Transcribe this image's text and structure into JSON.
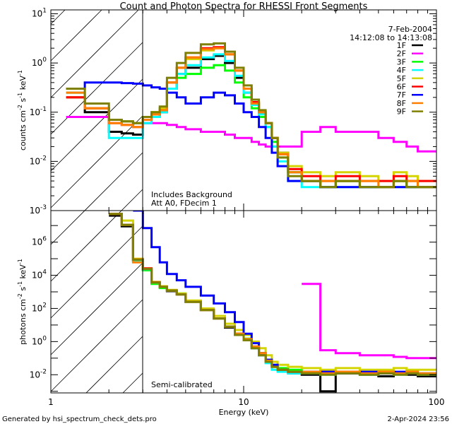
{
  "chart_data": [
    {
      "type": "line",
      "panel": "top",
      "title": "Count and Photon Spectra for RHESSI Front Segments",
      "date": "7-Feb-2004",
      "time_range": "14:12:08 to 14:13:08",
      "annotations": [
        "Includes Background",
        "Att A0, FDecim 1"
      ],
      "ylabel": {
        "base": "counts cm",
        "e1": "-2",
        "mid": " s",
        "e2": "-1",
        "mid2": " keV",
        "e3": "-1"
      },
      "xscale": "log",
      "yscale": "log",
      "xlim": [
        1,
        100
      ],
      "ylim": [
        0.001,
        12
      ],
      "yticks": [
        {
          "b": "10",
          "e": "1",
          "v": 10
        },
        {
          "b": "10",
          "e": "0",
          "v": 1
        },
        {
          "b": "10",
          "e": "-1",
          "v": 0.1
        },
        {
          "b": "10",
          "e": "-2",
          "v": 0.01
        },
        {
          "b": "10",
          "e": "-3",
          "v": 0.001
        }
      ],
      "legend_position": "top-right",
      "energy_edges": [
        1.2,
        1.5,
        2,
        2.33,
        2.67,
        3,
        3.33,
        3.67,
        4,
        4.5,
        5,
        6,
        7,
        8,
        9,
        10,
        11,
        12,
        13,
        14,
        15,
        17,
        20,
        25,
        30,
        40,
        50,
        60,
        70,
        80,
        100
      ],
      "series": [
        {
          "name": "1F",
          "color": "#000000",
          "values": [
            0.2,
            0.1,
            0.04,
            0.037,
            0.035,
            0.06,
            0.08,
            0.1,
            0.3,
            0.6,
            0.8,
            1.2,
            1.4,
            1.0,
            0.5,
            0.25,
            0.15,
            0.1,
            0.06,
            0.03,
            0.015,
            0.006,
            0.004,
            0.003,
            0.004,
            0.003,
            0.003,
            0.004,
            0.003,
            0.003
          ]
        },
        {
          "name": "2F",
          "color": "#ff00ff",
          "values": [
            0.08,
            0.08,
            0.07,
            0.065,
            0.06,
            0.06,
            0.06,
            0.06,
            0.055,
            0.05,
            0.045,
            0.04,
            0.04,
            0.035,
            0.03,
            0.03,
            0.025,
            0.022,
            0.02,
            0.02,
            0.02,
            0.02,
            0.04,
            0.05,
            0.04,
            0.04,
            0.03,
            0.025,
            0.02,
            0.016
          ]
        },
        {
          "name": "3F",
          "color": "#00ff00",
          "values": [
            0.25,
            0.12,
            0.07,
            0.065,
            0.06,
            0.08,
            0.1,
            0.12,
            0.3,
            0.5,
            0.6,
            0.8,
            0.9,
            0.7,
            0.4,
            0.2,
            0.12,
            0.08,
            0.05,
            0.025,
            0.012,
            0.006,
            0.004,
            0.003,
            0.004,
            0.003,
            0.003,
            0.004,
            0.003,
            0.003
          ]
        },
        {
          "name": "4F",
          "color": "#00ffff",
          "values": [
            0.25,
            0.12,
            0.03,
            0.03,
            0.03,
            0.06,
            0.08,
            0.1,
            0.3,
            0.6,
            0.9,
            1.3,
            1.5,
            1.1,
            0.55,
            0.25,
            0.14,
            0.09,
            0.05,
            0.02,
            0.01,
            0.004,
            0.003,
            0.003,
            0.003,
            0.003,
            0.003,
            0.003,
            0.003,
            0.003
          ]
        },
        {
          "name": "5F",
          "color": "#d4d400",
          "values": [
            0.2,
            0.12,
            0.07,
            0.065,
            0.06,
            0.08,
            0.1,
            0.12,
            0.4,
            0.8,
            1.2,
            1.8,
            2.0,
            1.5,
            0.7,
            0.3,
            0.16,
            0.1,
            0.06,
            0.03,
            0.015,
            0.008,
            0.006,
            0.005,
            0.006,
            0.005,
            0.004,
            0.006,
            0.005,
            0.004
          ]
        },
        {
          "name": "6F",
          "color": "#ff0000",
          "values": [
            0.2,
            0.12,
            0.06,
            0.055,
            0.05,
            0.07,
            0.09,
            0.11,
            0.4,
            0.8,
            1.3,
            2.0,
            2.1,
            1.5,
            0.7,
            0.3,
            0.16,
            0.1,
            0.06,
            0.03,
            0.014,
            0.007,
            0.005,
            0.004,
            0.005,
            0.004,
            0.004,
            0.005,
            0.004,
            0.004
          ]
        },
        {
          "name": "7F",
          "color": "#0000ff",
          "values": [
            0.3,
            0.4,
            0.4,
            0.39,
            0.38,
            0.35,
            0.32,
            0.3,
            0.25,
            0.2,
            0.15,
            0.2,
            0.25,
            0.22,
            0.15,
            0.1,
            0.08,
            0.05,
            0.03,
            0.015,
            0.008,
            0.004,
            0.004,
            0.003,
            0.003,
            0.003,
            0.003,
            0.003,
            0.003,
            0.003
          ]
        },
        {
          "name": "8F",
          "color": "#ff8000",
          "values": [
            0.25,
            0.12,
            0.06,
            0.055,
            0.05,
            0.07,
            0.09,
            0.11,
            0.4,
            0.8,
            1.3,
            1.9,
            2.0,
            1.5,
            0.7,
            0.3,
            0.15,
            0.1,
            0.06,
            0.03,
            0.014,
            0.006,
            0.004,
            0.004,
            0.004,
            0.004,
            0.003,
            0.004,
            0.004,
            0.003
          ]
        },
        {
          "name": "9F",
          "color": "#808000",
          "values": [
            0.3,
            0.15,
            0.07,
            0.065,
            0.06,
            0.08,
            0.1,
            0.13,
            0.5,
            1.0,
            1.6,
            2.4,
            2.5,
            1.7,
            0.8,
            0.35,
            0.18,
            0.11,
            0.06,
            0.03,
            0.012,
            0.005,
            0.004,
            0.003,
            0.004,
            0.003,
            0.003,
            0.004,
            0.003,
            0.003
          ]
        }
      ]
    },
    {
      "type": "line",
      "panel": "bottom",
      "annotations": [
        "Semi-calibrated"
      ],
      "xlabel": "Energy (keV)",
      "ylabel": {
        "base": "photons cm",
        "e1": "-2",
        "mid": " s",
        "e2": "-1",
        "mid2": " keV",
        "e3": "-1"
      },
      "xscale": "log",
      "yscale": "log",
      "xlim": [
        1,
        100
      ],
      "ylim": [
        0.0008,
        80000000
      ],
      "xticks": [
        {
          "label": "1",
          "v": 1
        },
        {
          "label": "10",
          "v": 10
        },
        {
          "label": "100",
          "v": 100
        }
      ],
      "yticks": [
        {
          "b": "10",
          "e": "6",
          "v": 1000000
        },
        {
          "b": "10",
          "e": "4",
          "v": 10000
        },
        {
          "b": "10",
          "e": "2",
          "v": 100
        },
        {
          "b": "10",
          "e": "0",
          "v": 1
        },
        {
          "b": "10",
          "e": "-2",
          "v": 0.01
        }
      ],
      "energy_edges": [
        1.2,
        1.5,
        2,
        2.33,
        2.67,
        3,
        3.33,
        3.67,
        4,
        4.5,
        5,
        6,
        7,
        8,
        9,
        10,
        11,
        12,
        13,
        14,
        15,
        17,
        20,
        25,
        30,
        40,
        50,
        60,
        70,
        80,
        100
      ],
      "series": [
        {
          "name": "1F",
          "color": "#000000",
          "values": [
            null,
            null,
            40000000.0,
            9000000.0,
            80000.0,
            22000.0,
            3500.0,
            1900.0,
            1100.0,
            700.0,
            250.0,
            80,
            25,
            7,
            3,
            1.2,
            0.4,
            0.15,
            0.06,
            0.03,
            0.02,
            0.012,
            0.01,
            0.001,
            0.012,
            0.01,
            0.008,
            0.012,
            0.01,
            0.008
          ]
        },
        {
          "name": "2F",
          "color": "#ff00ff",
          "values": [
            null,
            null,
            null,
            null,
            null,
            null,
            null,
            null,
            null,
            null,
            null,
            null,
            null,
            null,
            null,
            null,
            null,
            null,
            null,
            null,
            null,
            null,
            3000,
            0.3,
            0.2,
            0.15,
            0.15,
            0.12,
            0.1,
            0.1
          ]
        },
        {
          "name": "3F",
          "color": "#00ff00",
          "values": [
            null,
            null,
            50000000.0,
            11000000.0,
            70000.0,
            20000.0,
            3000.0,
            1700.0,
            1200.0,
            800.0,
            250.0,
            80,
            25,
            8,
            3,
            1.5,
            0.5,
            0.2,
            0.08,
            0.04,
            0.025,
            0.02,
            0.015,
            0.015,
            0.015,
            0.012,
            0.015,
            0.012,
            0.015,
            0.012
          ]
        },
        {
          "name": "4F",
          "color": "#00ffff",
          "values": [
            null,
            null,
            50000000.0,
            11000000.0,
            80000.0,
            23000.0,
            3600.0,
            2000.0,
            1200.0,
            700.0,
            250.0,
            80,
            25,
            8,
            2.5,
            1.2,
            0.4,
            0.15,
            0.05,
            0.02,
            0.015,
            0.012,
            0.012,
            0.01,
            0.012,
            0.01,
            0.012,
            0.01,
            0.012,
            0.01
          ]
        },
        {
          "name": "5F",
          "color": "#d4d400",
          "values": [
            null,
            null,
            50000000.0,
            20000000.0,
            100000.0,
            26000.0,
            4000.0,
            2200.0,
            1300.0,
            800.0,
            300.0,
            100.0,
            35,
            12,
            5,
            2.5,
            1,
            0.4,
            0.15,
            0.06,
            0.04,
            0.03,
            0.025,
            0.02,
            0.025,
            0.02,
            0.02,
            0.025,
            0.02,
            0.02
          ]
        },
        {
          "name": "6F",
          "color": "#ff0000",
          "values": [
            null,
            null,
            50000000.0,
            11000000.0,
            90000.0,
            26000.0,
            3800.0,
            2000.0,
            1200.0,
            700.0,
            250.0,
            80,
            25,
            8,
            3,
            1.4,
            0.5,
            0.2,
            0.07,
            0.035,
            0.02,
            0.015,
            0.015,
            0.015,
            0.015,
            0.012,
            0.015,
            0.012,
            0.015,
            0.012
          ]
        },
        {
          "name": "7F",
          "color": "#0000ff",
          "values": [
            null,
            null,
            null,
            null,
            100000000.0,
            7000000.0,
            500000.0,
            60000.0,
            12000.0,
            5000.0,
            2000.0,
            600.0,
            200.0,
            60,
            15,
            3,
            0.8,
            0.2,
            0.08,
            0.04,
            0.02,
            0.015,
            0.015,
            0.015,
            0.012,
            0.015,
            0.012,
            0.015,
            0.012,
            0.012
          ]
        },
        {
          "name": "8F",
          "color": "#ff8000",
          "values": [
            null,
            null,
            50000000.0,
            11000000.0,
            60000.0,
            24000.0,
            3700.0,
            2000.0,
            1200.0,
            700.0,
            250.0,
            80,
            25,
            8,
            3,
            1.4,
            0.5,
            0.2,
            0.07,
            0.03,
            0.02,
            0.015,
            0.015,
            0.012,
            0.015,
            0.012,
            0.015,
            0.012,
            0.015,
            0.012
          ]
        },
        {
          "name": "9F",
          "color": "#808000",
          "values": [
            null,
            null,
            50000000.0,
            11000000.0,
            87000.0,
            24000.0,
            3700.0,
            2000.0,
            1200.0,
            700.0,
            250.0,
            80,
            25,
            8,
            2.5,
            1.2,
            0.4,
            0.15,
            0.06,
            0.03,
            0.02,
            0.015,
            0.012,
            0.01,
            0.012,
            0.01,
            0.012,
            0.01,
            0.012,
            0.01
          ]
        }
      ]
    }
  ],
  "footer": {
    "left": "Generated by hsi_spectrum_check_dets.pro",
    "right": "2-Apr-2024 23:56"
  }
}
